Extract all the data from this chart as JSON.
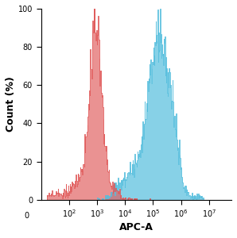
{
  "title": "",
  "xlabel": "APC-A",
  "ylabel": "Count (%)",
  "ylim": [
    0,
    100
  ],
  "yticks": [
    0,
    20,
    40,
    60,
    80,
    100
  ],
  "red_color": "#E05858",
  "red_fill": "#E05858",
  "blue_color": "#55BEDD",
  "blue_fill": "#55BEDD",
  "red_alpha": 0.65,
  "blue_alpha": 0.7,
  "background_color": "#ffffff",
  "red_peak_log": 2.95,
  "red_spread": 0.2,
  "blue_peak1_log": 4.85,
  "blue_peak2_log": 5.25,
  "blue_peak3_log": 5.55
}
